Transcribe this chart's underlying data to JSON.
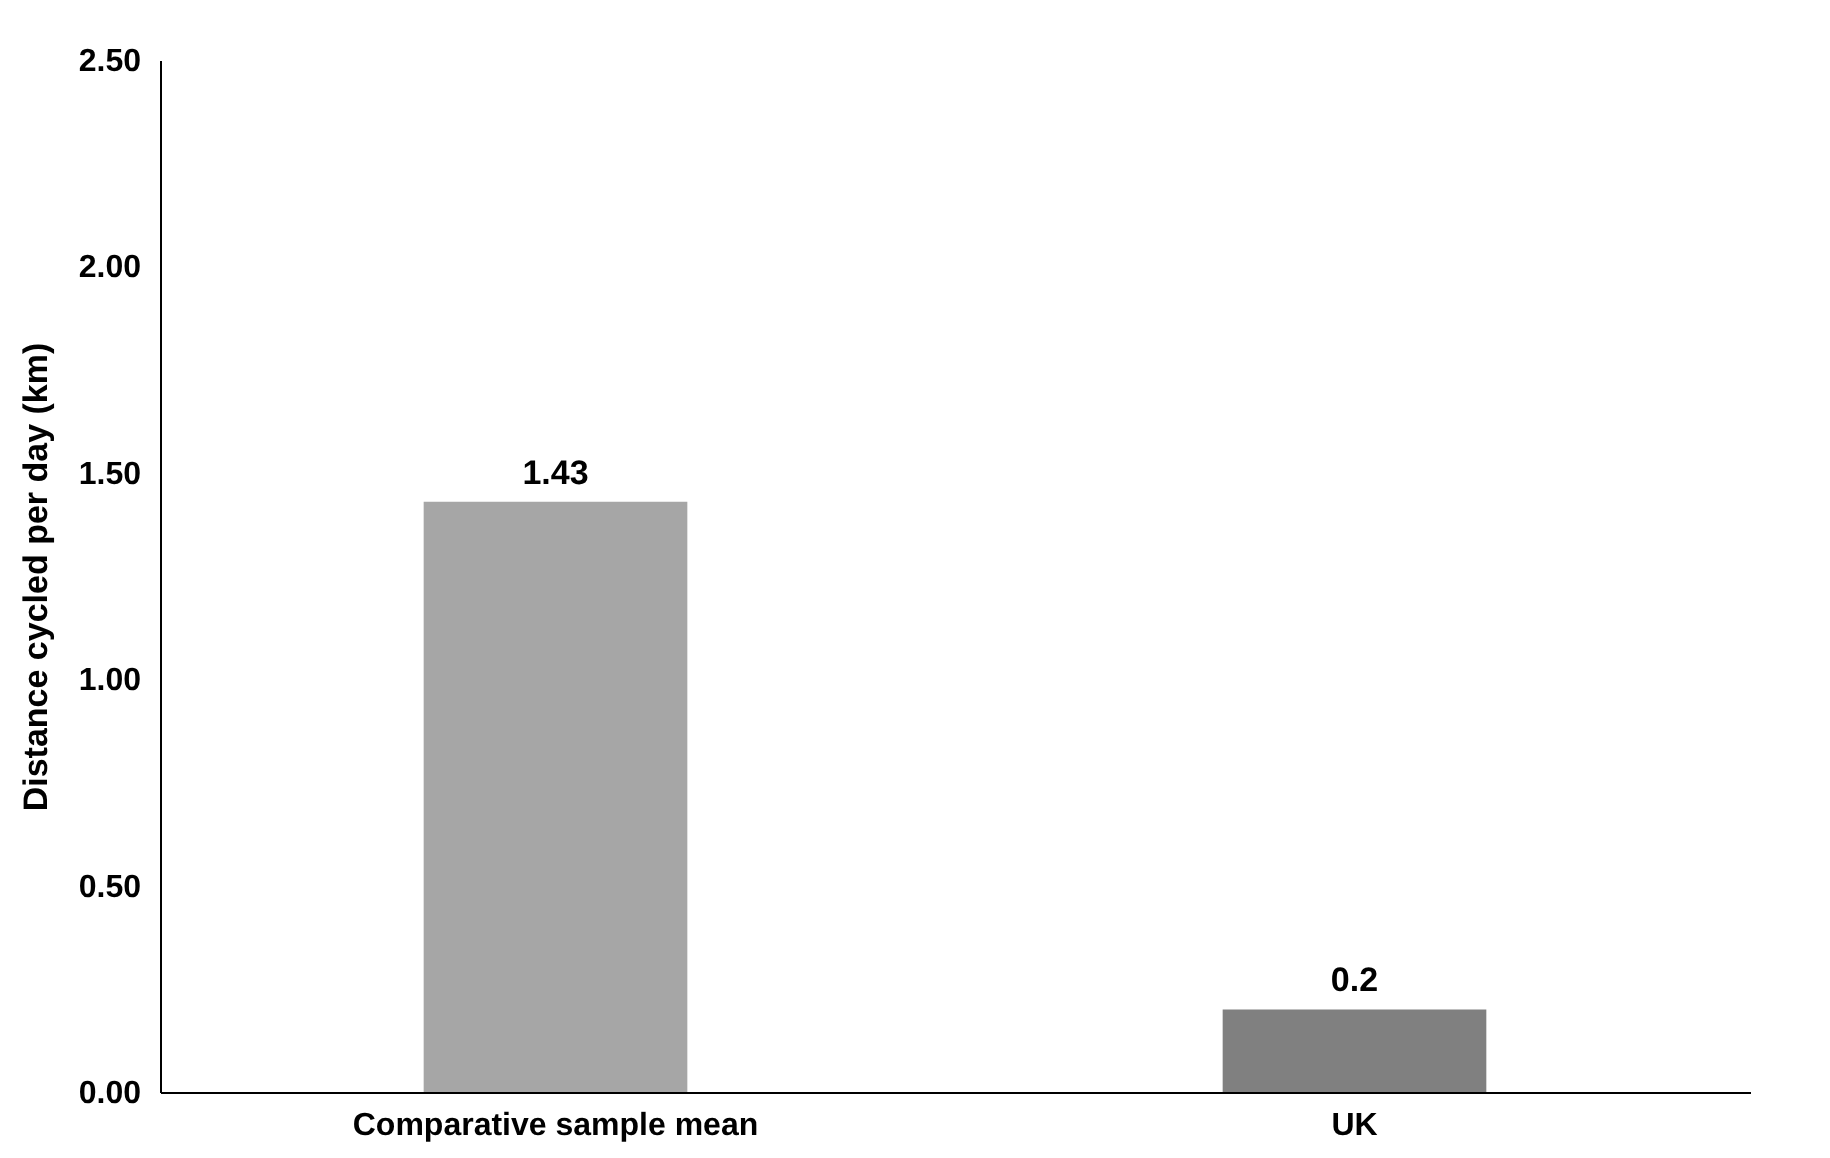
{
  "chart_data": {
    "type": "bar",
    "ylabel": "Distance cycled per day (km)",
    "categories": [
      "Comparative sample mean",
      "UK"
    ],
    "values": [
      1.43,
      0.2
    ],
    "colors": [
      "#a6a6a6",
      "#808080"
    ],
    "ylim": [
      0,
      2.5
    ],
    "yticks": [
      {
        "value": 0,
        "label": "0.00"
      },
      {
        "value": 0.5,
        "label": "0.50"
      },
      {
        "value": 1,
        "label": "1.00"
      },
      {
        "value": 1.5,
        "label": "1.50"
      },
      {
        "value": 2,
        "label": "2.00"
      },
      {
        "value": 2.5,
        "label": "2.50"
      }
    ],
    "data_labels": true
  }
}
